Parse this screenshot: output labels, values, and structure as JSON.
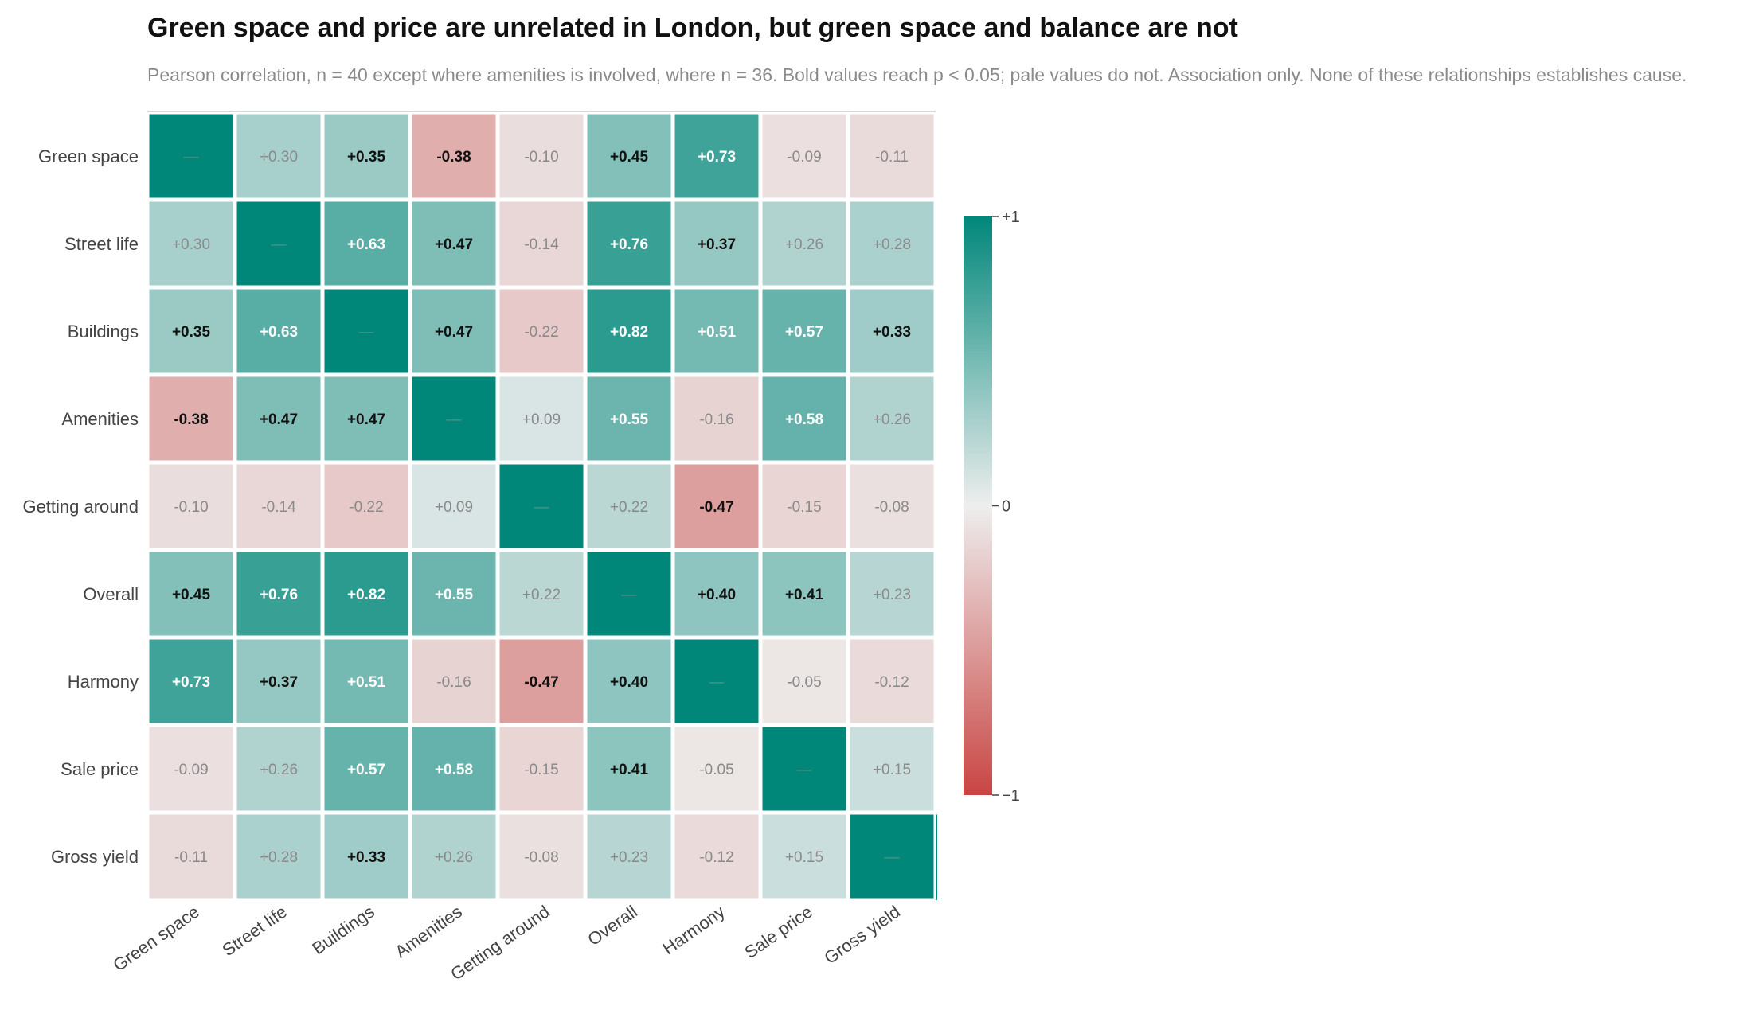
{
  "chart_data": {
    "type": "heatmap",
    "title": "Green space and price are unrelated in London, but green space and balance are not",
    "subtitle": "Pearson correlation, n = 40 except where amenities is involved, where n = 36. Bold values reach p < 0.05; pale values do not. Association only. None of these relationships establishes cause.",
    "rows": [
      "Green space",
      "Street life",
      "Buildings",
      "Amenities",
      "Getting around",
      "Overall",
      "Harmony",
      "Sale price",
      "Gross yield"
    ],
    "columns": [
      "Green space",
      "Street life",
      "Buildings",
      "Amenities",
      "Getting around",
      "Overall",
      "Harmony",
      "Sale price",
      "Gross yield"
    ],
    "values": [
      [
        1.0,
        0.3,
        0.35,
        -0.38,
        -0.1,
        0.45,
        0.73,
        -0.09,
        -0.11
      ],
      [
        0.3,
        1.0,
        0.63,
        0.47,
        -0.14,
        0.76,
        0.37,
        0.26,
        0.28
      ],
      [
        0.35,
        0.63,
        1.0,
        0.47,
        -0.22,
        0.82,
        0.51,
        0.57,
        0.33
      ],
      [
        -0.38,
        0.47,
        0.47,
        1.0,
        0.09,
        0.55,
        -0.16,
        0.58,
        0.26
      ],
      [
        -0.1,
        -0.14,
        -0.22,
        0.09,
        1.0,
        0.22,
        -0.47,
        -0.15,
        -0.08
      ],
      [
        0.45,
        0.76,
        0.82,
        0.55,
        0.22,
        1.0,
        0.4,
        0.41,
        0.23
      ],
      [
        0.73,
        0.37,
        0.51,
        -0.16,
        -0.47,
        0.4,
        1.0,
        -0.05,
        -0.12
      ],
      [
        -0.09,
        0.26,
        0.57,
        0.58,
        -0.15,
        0.41,
        -0.05,
        1.0,
        0.15
      ],
      [
        -0.11,
        0.28,
        0.33,
        0.26,
        -0.08,
        0.23,
        -0.12,
        0.15,
        1.0
      ]
    ],
    "labels": [
      [
        "—",
        "+0.30",
        "+0.35",
        "-0.38",
        "-0.10",
        "+0.45",
        "+0.73",
        "-0.09",
        "-0.11"
      ],
      [
        "+0.30",
        "—",
        "+0.63",
        "+0.47",
        "-0.14",
        "+0.76",
        "+0.37",
        "+0.26",
        "+0.28"
      ],
      [
        "+0.35",
        "+0.63",
        "—",
        "+0.47",
        "-0.22",
        "+0.82",
        "+0.51",
        "+0.57",
        "+0.33"
      ],
      [
        "-0.38",
        "+0.47",
        "+0.47",
        "—",
        "+0.09",
        "+0.55",
        "-0.16",
        "+0.58",
        "+0.26"
      ],
      [
        "-0.10",
        "-0.14",
        "-0.22",
        "+0.09",
        "—",
        "+0.22",
        "-0.47",
        "-0.15",
        "-0.08"
      ],
      [
        "+0.45",
        "+0.76",
        "+0.82",
        "+0.55",
        "+0.22",
        "—",
        "+0.40",
        "+0.41",
        "+0.23"
      ],
      [
        "+0.73",
        "+0.37",
        "+0.51",
        "-0.16",
        "-0.47",
        "+0.40",
        "—",
        "-0.05",
        "-0.12"
      ],
      [
        "-0.09",
        "+0.26",
        "+0.57",
        "+0.58",
        "-0.15",
        "+0.41",
        "-0.05",
        "—",
        "+0.15"
      ],
      [
        "-0.11",
        "+0.28",
        "+0.33",
        "+0.26",
        "-0.08",
        "+0.23",
        "-0.12",
        "+0.15",
        "—"
      ]
    ],
    "significant": [
      [
        false,
        false,
        true,
        true,
        false,
        true,
        true,
        false,
        false
      ],
      [
        false,
        false,
        true,
        true,
        false,
        true,
        true,
        false,
        false
      ],
      [
        true,
        true,
        false,
        true,
        false,
        true,
        true,
        true,
        true
      ],
      [
        true,
        true,
        true,
        false,
        false,
        true,
        false,
        true,
        false
      ],
      [
        false,
        false,
        false,
        false,
        false,
        false,
        true,
        false,
        false
      ],
      [
        true,
        true,
        true,
        true,
        false,
        false,
        true,
        true,
        false
      ],
      [
        true,
        true,
        true,
        false,
        true,
        true,
        false,
        false,
        false
      ],
      [
        false,
        false,
        true,
        true,
        false,
        true,
        false,
        false,
        false
      ],
      [
        false,
        false,
        true,
        false,
        false,
        false,
        false,
        false,
        false
      ]
    ],
    "color_scale": {
      "min": -1,
      "max": 1,
      "colors": {
        "negative": "#c94543",
        "zero": "#eeeeee",
        "positive": "#00877a"
      },
      "ticks": [
        {
          "value": 1,
          "label": "+1"
        },
        {
          "value": 0,
          "label": "0"
        },
        {
          "value": -1,
          "label": "−1"
        }
      ],
      "legend_position": "right"
    },
    "xlabel": "",
    "ylabel": ""
  }
}
